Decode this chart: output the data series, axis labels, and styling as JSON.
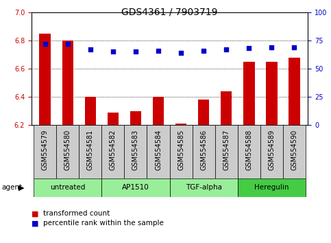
{
  "title": "GDS4361 / 7903719",
  "samples": [
    "GSM554579",
    "GSM554580",
    "GSM554581",
    "GSM554582",
    "GSM554583",
    "GSM554584",
    "GSM554585",
    "GSM554586",
    "GSM554587",
    "GSM554588",
    "GSM554589",
    "GSM554590"
  ],
  "transformed_count": [
    6.85,
    6.8,
    6.4,
    6.29,
    6.3,
    6.4,
    6.21,
    6.38,
    6.44,
    6.65,
    6.65,
    6.68
  ],
  "percentile_rank": [
    72,
    72,
    67,
    65,
    65,
    66,
    64,
    66,
    67,
    68,
    69,
    69
  ],
  "ylim_left": [
    6.2,
    7.0
  ],
  "yticks_left": [
    6.2,
    6.4,
    6.6,
    6.8,
    7.0
  ],
  "ylim_right": [
    0,
    100
  ],
  "yticks_right": [
    0,
    25,
    50,
    75,
    100
  ],
  "bar_color": "#cc0000",
  "dot_color": "#0000cc",
  "agent_groups": [
    {
      "label": "untreated",
      "start": 0,
      "end": 3,
      "color": "#99ee99"
    },
    {
      "label": "AP1510",
      "start": 3,
      "end": 6,
      "color": "#99ee99"
    },
    {
      "label": "TGF-alpha",
      "start": 6,
      "end": 9,
      "color": "#99ee99"
    },
    {
      "label": "Heregulin",
      "start": 9,
      "end": 12,
      "color": "#44cc44"
    }
  ],
  "bar_width": 0.5,
  "grid_color": "#000000",
  "grid_style": "dotted",
  "plot_bg": "#ffffff",
  "xticklabel_bg": "#cccccc",
  "legend_items": [
    "transformed count",
    "percentile rank within the sample"
  ],
  "legend_colors": [
    "#cc0000",
    "#0000cc"
  ],
  "agent_label": "agent",
  "title_fontsize": 10,
  "tick_fontsize": 7,
  "label_fontsize": 7.5
}
